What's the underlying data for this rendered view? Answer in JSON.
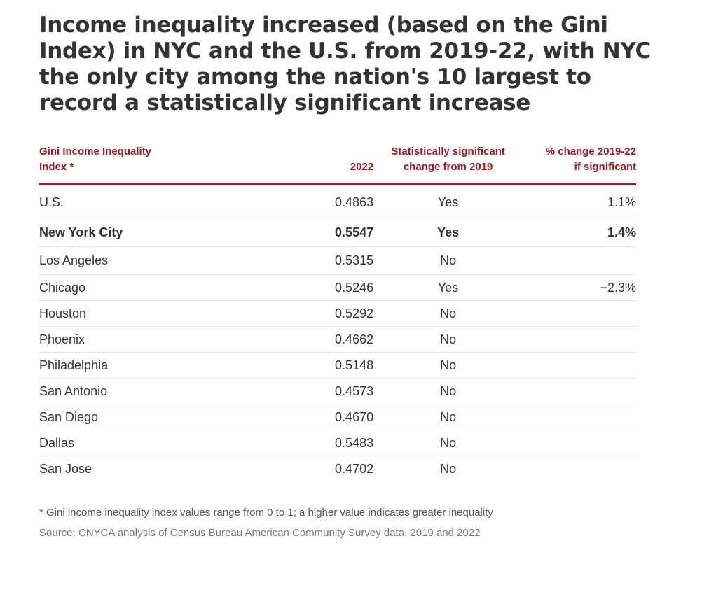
{
  "chart_data": {
    "type": "table",
    "title": "Income inequality increased (based on the Gini Index) in NYC and the U.S. from 2019-22, with NYC the only city among the nation's 10 largest to record a statistically significant increase",
    "columns": [
      "Gini Income Inequality Index *",
      "2022",
      "Statistically significant change from 2019",
      "% change 2019-22 if significant"
    ],
    "rows": [
      {
        "name": "U.S.",
        "value": "0.4863",
        "significant": "Yes",
        "pct_change": "1.1%",
        "bold": false
      },
      {
        "name": "New York City",
        "value": "0.5547",
        "significant": "Yes",
        "pct_change": "1.4%",
        "bold": true
      },
      {
        "name": "Los Angeles",
        "value": "0.5315",
        "significant": "No",
        "pct_change": "",
        "bold": false
      },
      {
        "name": "Chicago",
        "value": "0.5246",
        "significant": "Yes",
        "pct_change": "−2.3%",
        "bold": false
      },
      {
        "name": "Houston",
        "value": "0.5292",
        "significant": "No",
        "pct_change": "",
        "bold": false
      },
      {
        "name": "Phoenix",
        "value": "0.4662",
        "significant": "No",
        "pct_change": "",
        "bold": false
      },
      {
        "name": "Philadelphia",
        "value": "0.5148",
        "significant": "No",
        "pct_change": "",
        "bold": false
      },
      {
        "name": "San Antonio",
        "value": "0.4573",
        "significant": "No",
        "pct_change": "",
        "bold": false
      },
      {
        "name": "San Diego",
        "value": "0.4670",
        "significant": "No",
        "pct_change": "",
        "bold": false
      },
      {
        "name": "Dallas",
        "value": "0.5483",
        "significant": "No",
        "pct_change": "",
        "bold": false
      },
      {
        "name": "San Jose",
        "value": "0.4702",
        "significant": "No",
        "pct_change": "",
        "bold": false
      }
    ],
    "footnote": "* Gini income inequality index values range from 0 to 1; a higher value indicates greater inequality",
    "source": "Source: CNYCA analysis of Census Bureau American Community Survey data, 2019 and 2022"
  },
  "header": {
    "col_name_line1": "Gini Income Inequality",
    "col_name_line2": "Index *",
    "col_value": "2022",
    "col_sig_line1": "Statistically significant",
    "col_sig_line2": "change from 2019",
    "col_pct_line1": "% change 2019-22",
    "col_pct_line2": "if significant"
  },
  "colors": {
    "accent": "#9b1c22",
    "text": "#333333",
    "divider": "#e6e6e6"
  }
}
